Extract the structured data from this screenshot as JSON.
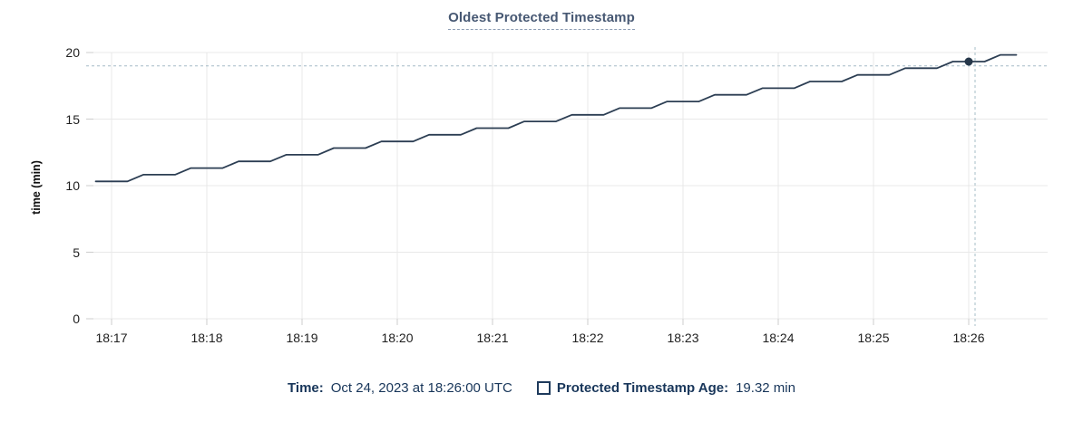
{
  "title": "Oldest Protected Timestamp",
  "colors": {
    "title": "#475873",
    "line": "#2c3e53",
    "dot": "#26374a",
    "crosshair": "#a6bcc7",
    "grid": "#e8e8e8",
    "tick": "#cccccc",
    "legend_text": "#18365a"
  },
  "y_axis": {
    "title": "time (min)",
    "ticks": [
      20,
      15,
      10,
      5,
      0
    ],
    "min": 0,
    "max": 20
  },
  "x_axis": {
    "ticks": [
      "18:17",
      "18:18",
      "18:19",
      "18:20",
      "18:21",
      "18:22",
      "18:23",
      "18:24",
      "18:25",
      "18:26"
    ]
  },
  "legend": {
    "time_label": "Time:",
    "time_value": "Oct 24, 2023 at 18:26:00 UTC",
    "series_label": "Protected Timestamp Age:",
    "series_value": "19.32 min"
  },
  "chart_data": {
    "type": "line",
    "title": "Oldest Protected Timestamp",
    "xlabel": "",
    "ylabel": "time (min)",
    "ylim": [
      0,
      20
    ],
    "x_range": [
      "18:16:50",
      "18:26:30"
    ],
    "x_start": "18:16:50",
    "x_interval_seconds": 10,
    "grid": true,
    "legend_position": "bottom",
    "series": [
      {
        "name": "Protected Timestamp Age",
        "unit": "min",
        "values": [
          10.32,
          10.32,
          10.32,
          10.82,
          10.82,
          10.82,
          11.32,
          11.32,
          11.32,
          11.82,
          11.82,
          11.82,
          12.32,
          12.32,
          12.32,
          12.82,
          12.82,
          12.82,
          13.32,
          13.32,
          13.32,
          13.82,
          13.82,
          13.82,
          14.32,
          14.32,
          14.32,
          14.82,
          14.82,
          14.82,
          15.32,
          15.32,
          15.32,
          15.82,
          15.82,
          15.82,
          16.32,
          16.32,
          16.32,
          16.82,
          16.82,
          16.82,
          17.32,
          17.32,
          17.32,
          17.82,
          17.82,
          17.82,
          18.32,
          18.32,
          18.32,
          18.82,
          18.82,
          18.82,
          19.32,
          19.32,
          19.32,
          19.82,
          19.82
        ]
      }
    ],
    "highlight_point": {
      "time": "18:26:00",
      "value": 19.32
    },
    "crosshair": {
      "time": "18:26:04",
      "value": 19.0
    }
  }
}
